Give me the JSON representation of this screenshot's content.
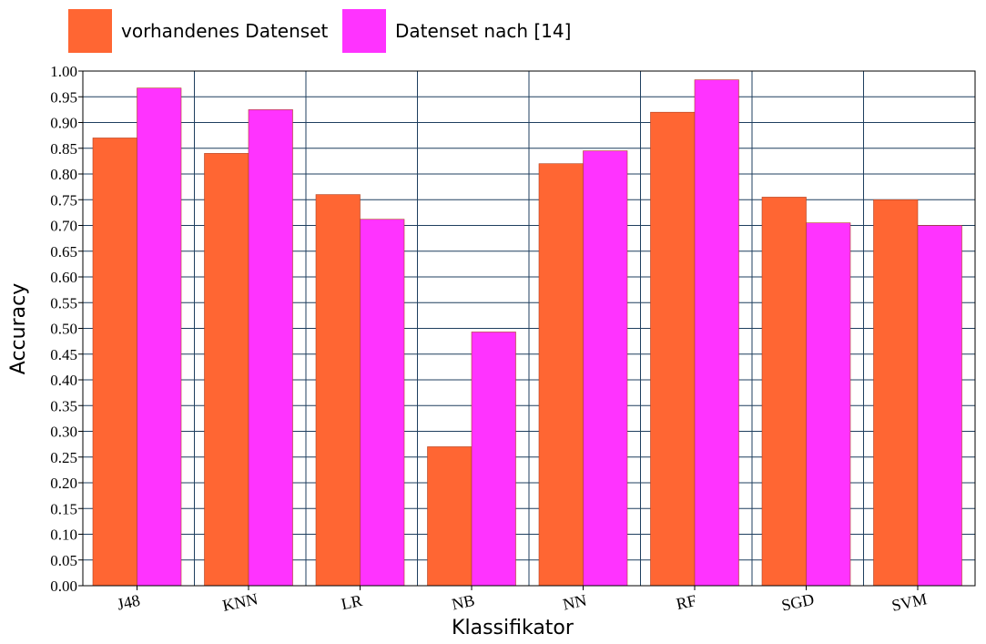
{
  "chart_data": {
    "type": "bar",
    "categories": [
      "J48",
      "KNN",
      "LR",
      "NB",
      "NN",
      "RF",
      "SGD",
      "SVM"
    ],
    "series": [
      {
        "name": "vorhandenes Datenset",
        "color": "#ff6633",
        "values": [
          0.87,
          0.84,
          0.76,
          0.27,
          0.82,
          0.92,
          0.755,
          0.75
        ]
      },
      {
        "name": "Datenset nach [14]",
        "color": "#ff33ff",
        "values": [
          0.967,
          0.925,
          0.712,
          0.493,
          0.845,
          0.983,
          0.705,
          0.7
        ]
      }
    ],
    "xlabel": "Klassifikator",
    "ylabel": "Accuracy",
    "ylim": [
      0,
      1.0
    ],
    "ytick_step": 0.05,
    "yticks": [
      "0.00",
      "0.05",
      "0.10",
      "0.15",
      "0.20",
      "0.25",
      "0.30",
      "0.35",
      "0.40",
      "0.45",
      "0.50",
      "0.55",
      "0.60",
      "0.65",
      "0.70",
      "0.75",
      "0.80",
      "0.85",
      "0.90",
      "0.95",
      "1.00"
    ],
    "grid": true,
    "grid_color": "#1f3f5f",
    "legend_position": "top-left"
  }
}
